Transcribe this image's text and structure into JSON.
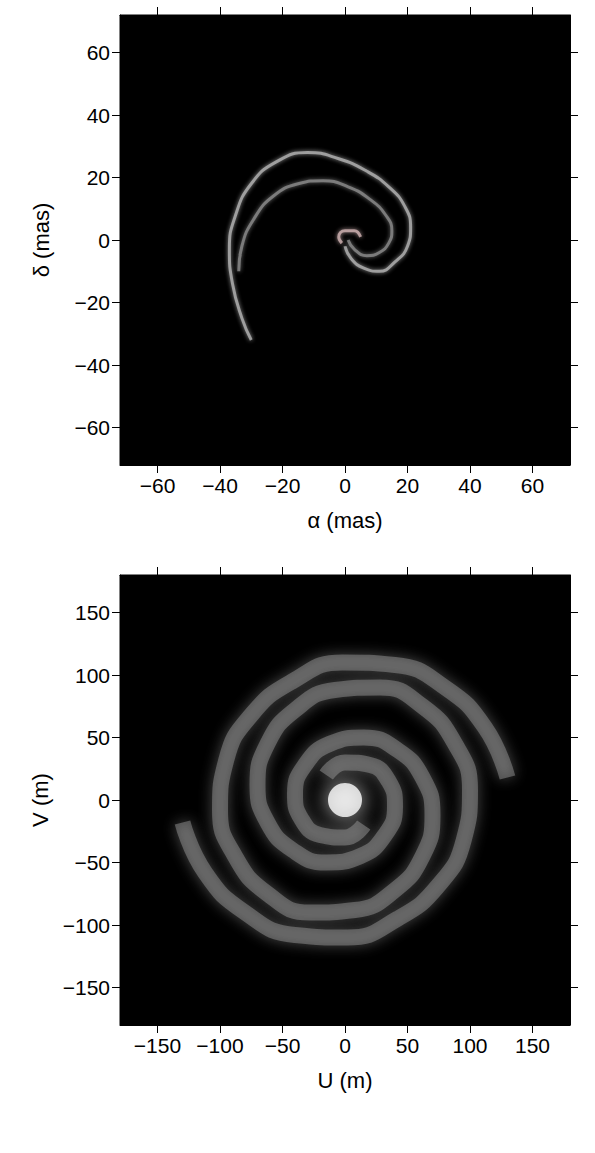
{
  "chart_data": [
    {
      "type": "line",
      "xlabel": "α (mas)",
      "ylabel": "δ (mas)",
      "xlim": [
        -72,
        72
      ],
      "ylim": [
        -72,
        72
      ],
      "xticks": [
        {
          "value": -60,
          "label": "−60"
        },
        {
          "value": -40,
          "label": "−40"
        },
        {
          "value": -20,
          "label": "−20"
        },
        0,
        20,
        40,
        60
      ],
      "yticks": [
        {
          "value": -60,
          "label": "−60"
        },
        {
          "value": -40,
          "label": "−40"
        },
        {
          "value": -20,
          "label": "−20"
        },
        0,
        20,
        40,
        60
      ],
      "grid": false,
      "series": [
        {
          "type": "line",
          "color": "#b4b4b4",
          "marker": "none",
          "x": [
            0,
            2,
            6,
            11,
            16,
            20,
            21,
            19,
            14,
            7,
            -2,
            -12,
            -22,
            -30,
            -35,
            -37,
            -36,
            -33,
            -30
          ],
          "values": [
            -2,
            -6,
            -9,
            -10,
            -7,
            -2,
            4,
            11,
            17,
            22,
            26,
            28,
            25,
            18,
            8,
            -3,
            -14,
            -25,
            -32
          ]
        },
        {
          "type": "line",
          "color": "#8c8c8c",
          "marker": "none",
          "x": [
            1,
            3,
            7,
            11,
            14,
            15,
            13,
            8,
            1,
            -7,
            -15,
            -23,
            -29,
            -33,
            -34
          ],
          "values": [
            0,
            -3,
            -5,
            -4,
            -1,
            3,
            8,
            13,
            17,
            19,
            18,
            14,
            7,
            -2,
            -10
          ]
        },
        {
          "type": "line",
          "color": "#d2b4b4",
          "marker": "none",
          "x": [
            -1,
            -2,
            0,
            3,
            5
          ],
          "values": [
            -1,
            1,
            3,
            3,
            1
          ]
        }
      ]
    },
    {
      "type": "line",
      "xlabel": "U (m)",
      "ylabel": "V (m)",
      "xlim": [
        -180,
        180
      ],
      "ylim": [
        -180,
        180
      ],
      "xticks": [
        {
          "value": -150,
          "label": "−150"
        },
        {
          "value": -100,
          "label": "−100"
        },
        {
          "value": -50,
          "label": "−50"
        },
        0,
        50,
        100,
        150
      ],
      "yticks": [
        {
          "value": -150,
          "label": "−150"
        },
        {
          "value": -100,
          "label": "−100"
        },
        {
          "value": -50,
          "label": "−50"
        },
        0,
        50,
        100,
        150
      ],
      "grid": false,
      "series": [
        {
          "type": "line",
          "color": "#a0a0a0",
          "marker": "none",
          "x": [
            15,
            0,
            -20,
            -35,
            -40,
            -32,
            -12,
            15,
            42,
            62,
            70,
            62,
            40,
            8,
            -28,
            -62,
            -88,
            -100,
            -95,
            -75,
            -42,
            -2,
            40,
            80,
            112,
            130
          ],
          "values": [
            -20,
            -30,
            -28,
            -15,
            5,
            28,
            45,
            50,
            40,
            18,
            -12,
            -45,
            -72,
            -88,
            -90,
            -75,
            -45,
            -8,
            32,
            68,
            95,
            110,
            108,
            90,
            58,
            18
          ]
        },
        {
          "type": "line",
          "color": "#a0a0a0",
          "marker": "none",
          "x": [
            -15,
            0,
            20,
            35,
            40,
            32,
            12,
            -15,
            -42,
            -62,
            -70,
            -62,
            -40,
            -8,
            28,
            62,
            88,
            100,
            95,
            75,
            42,
            2,
            -40,
            -80,
            -112,
            -130
          ],
          "values": [
            20,
            30,
            28,
            15,
            -5,
            -28,
            -45,
            -50,
            -40,
            -18,
            12,
            45,
            72,
            88,
            90,
            75,
            45,
            8,
            -32,
            -68,
            -95,
            -110,
            -108,
            -90,
            -58,
            -18
          ]
        },
        {
          "type": "scatter",
          "color": "#ffffff",
          "marker": "circle",
          "x": [
            0
          ],
          "values": [
            0
          ]
        }
      ]
    }
  ]
}
